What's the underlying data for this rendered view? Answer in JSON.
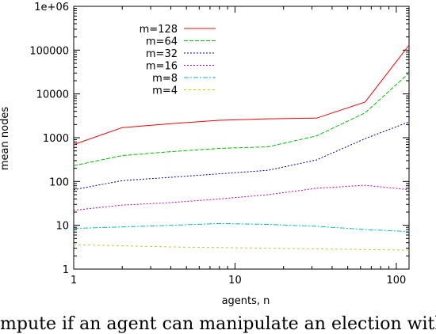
{
  "chart_data": {
    "type": "line",
    "xlabel": "agents, n",
    "ylabel": "mean nodes",
    "xscale": "log",
    "yscale": "log",
    "xlim": [
      1,
      120
    ],
    "ylim": [
      1,
      1000000
    ],
    "x_ticks": [
      {
        "value": 1,
        "label": "1"
      },
      {
        "value": 10,
        "label": "10"
      },
      {
        "value": 100,
        "label": "100"
      }
    ],
    "y_ticks": [
      {
        "value": 1,
        "label": "1"
      },
      {
        "value": 10,
        "label": "10"
      },
      {
        "value": 100,
        "label": "100"
      },
      {
        "value": 1000,
        "label": "1000"
      },
      {
        "value": 10000,
        "label": "10000"
      },
      {
        "value": 100000,
        "label": "100000"
      },
      {
        "value": 1000000,
        "label": "1e+06"
      }
    ],
    "grid": false,
    "legend_position": "top-left",
    "x": [
      1,
      2,
      4,
      8,
      16,
      32,
      64,
      120
    ],
    "series": [
      {
        "name": "m=128",
        "color": "#ff0000",
        "dash": "",
        "values": [
          700,
          1700,
          2100,
          2500,
          2700,
          2800,
          6500,
          130000
        ]
      },
      {
        "name": "m=64",
        "color": "#00c000",
        "dash": "5,2",
        "values": [
          230,
          390,
          480,
          570,
          620,
          1100,
          3700,
          30000
        ]
      },
      {
        "name": "m=32",
        "color": "#0000a0",
        "dash": "2,2",
        "values": [
          65,
          105,
          125,
          150,
          180,
          310,
          950,
          2300
        ]
      },
      {
        "name": "m=16",
        "color": "#c000c0",
        "dash": "2,2",
        "values": [
          22,
          29,
          33,
          40,
          50,
          70,
          82,
          65
        ]
      },
      {
        "name": "m=8",
        "color": "#00c0c0",
        "dash": "6,2,2,2",
        "values": [
          8.5,
          9.2,
          10,
          11,
          10.5,
          9.5,
          8,
          7.2
        ]
      },
      {
        "name": "m=4",
        "color": "#d8c800",
        "dash": "3,3",
        "values": [
          3.6,
          3.4,
          3.2,
          3.1,
          3.0,
          2.9,
          2.8,
          2.7
        ]
      }
    ]
  },
  "caption": "mpute if an agent can manipulate an election with"
}
